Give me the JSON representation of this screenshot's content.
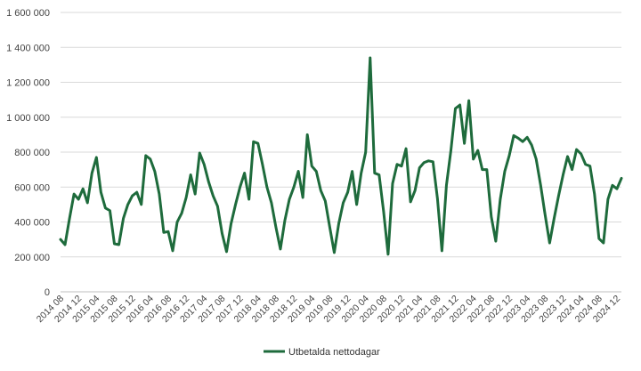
{
  "chart_data": {
    "type": "line",
    "title": "",
    "xlabel": "",
    "ylabel": "",
    "ylim": [
      0,
      1600000
    ],
    "yticks": [
      0,
      200000,
      400000,
      600000,
      800000,
      1000000,
      1200000,
      1400000,
      1600000
    ],
    "ytick_labels": [
      "0",
      "200 000",
      "400 000",
      "600 000",
      "800 000",
      "1 000 000",
      "1 200 000",
      "1 400 000",
      "1 600 000"
    ],
    "x_start": "2014 08",
    "x_tick_step_months": 4,
    "xtick_labels": [
      "2014 08",
      "2014 12",
      "2015 04",
      "2015 08",
      "2015 12",
      "2016 04",
      "2016 08",
      "2016 12",
      "2017 04",
      "2017 08",
      "2017 12",
      "2018 04",
      "2018 08",
      "2018 12",
      "2019 04",
      "2019 08",
      "2019 12",
      "2020 04",
      "2020 08",
      "2020 12",
      "2021 04",
      "2021 08",
      "2021 12",
      "2022 04",
      "2022 08",
      "2022 12",
      "2023 04",
      "2023 08",
      "2023 12",
      "2024 04",
      "2024 08",
      "2024 12"
    ],
    "grid": true,
    "legend_position": "bottom-center",
    "colors": {
      "line": "#1e6b3c",
      "grid": "#d9d9d9",
      "axis": "#bfbfbf"
    },
    "series": [
      {
        "name": "Utbetalda nettodagar",
        "values": [
          300000,
          270000,
          420000,
          560000,
          530000,
          590000,
          510000,
          680000,
          770000,
          570000,
          480000,
          465000,
          275000,
          270000,
          420000,
          500000,
          550000,
          570000,
          500000,
          780000,
          760000,
          690000,
          560000,
          340000,
          345000,
          235000,
          400000,
          450000,
          540000,
          670000,
          560000,
          795000,
          730000,
          630000,
          550000,
          490000,
          335000,
          230000,
          390000,
          500000,
          600000,
          680000,
          530000,
          860000,
          850000,
          730000,
          600000,
          510000,
          370000,
          245000,
          410000,
          530000,
          600000,
          690000,
          540000,
          900000,
          720000,
          690000,
          580000,
          520000,
          370000,
          225000,
          390000,
          510000,
          570000,
          690000,
          500000,
          680000,
          800000,
          1340000,
          680000,
          670000,
          460000,
          215000,
          620000,
          730000,
          720000,
          820000,
          515000,
          580000,
          710000,
          740000,
          750000,
          745000,
          535000,
          235000,
          610000,
          810000,
          1050000,
          1070000,
          850000,
          1095000,
          760000,
          810000,
          700000,
          700000,
          430000,
          290000,
          530000,
          690000,
          780000,
          895000,
          880000,
          860000,
          885000,
          840000,
          760000,
          610000,
          440000,
          280000,
          420000,
          550000,
          670000,
          775000,
          700000,
          815000,
          790000,
          730000,
          720000,
          560000,
          305000,
          280000,
          530000,
          610000,
          590000,
          650000
        ]
      }
    ]
  }
}
